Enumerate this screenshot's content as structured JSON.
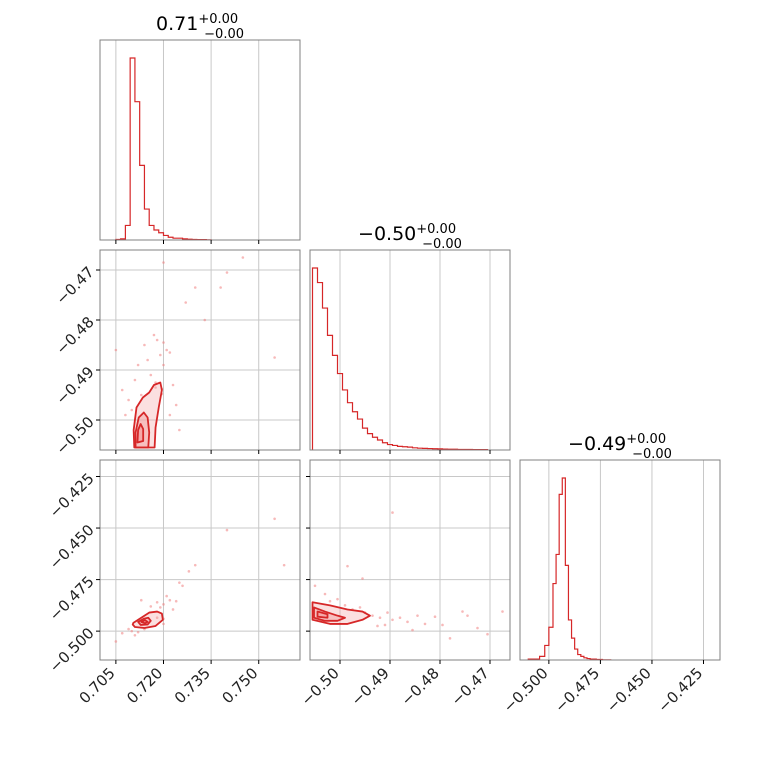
{
  "chart_data": {
    "type": "corner",
    "grid": true,
    "colors": {
      "line": "#d62728",
      "fill": "#f4a6a6",
      "points": "#f08080",
      "frame": "#808080",
      "grid": "#c8c8c8"
    },
    "parameters": [
      {
        "title_value": "0.71",
        "title_plus": "+0.00",
        "title_minus": "−0.00"
      },
      {
        "title_value": "−0.50",
        "title_plus": "+0.00",
        "title_minus": "−0.00"
      },
      {
        "title_value": "−0.49",
        "title_plus": "+0.00",
        "title_minus": "−0.00"
      }
    ],
    "axes": [
      {
        "range": [
          0.7,
          0.763
        ],
        "ticks": [
          0.705,
          0.72,
          0.735,
          0.75
        ],
        "tick_labels": [
          "0.705",
          "0.720",
          "0.735",
          "0.750"
        ]
      },
      {
        "range": [
          -0.506,
          -0.466
        ],
        "ticks": [
          -0.5,
          -0.49,
          -0.48,
          -0.47
        ],
        "tick_labels": [
          "−0.50",
          "−0.49",
          "−0.48",
          "−0.47"
        ]
      },
      {
        "range": [
          -0.514,
          -0.417
        ],
        "ticks": [
          -0.5,
          -0.475,
          -0.45,
          -0.425
        ],
        "tick_labels": [
          "−0.500",
          "−0.475",
          "−0.450",
          "−0.425"
        ]
      }
    ],
    "histograms": [
      {
        "edges": [
          0.705,
          0.7065,
          0.708,
          0.7095,
          0.711,
          0.7125,
          0.714,
          0.7155,
          0.717,
          0.7185,
          0.72,
          0.7215,
          0.723,
          0.7245,
          0.726,
          0.7275,
          0.729,
          0.7305,
          0.732,
          0.7335,
          0.735
        ],
        "counts": [
          0.003,
          0.006,
          0.08,
          1.0,
          0.76,
          0.41,
          0.17,
          0.08,
          0.055,
          0.04,
          0.025,
          0.015,
          0.01,
          0.01,
          0.006,
          0.004,
          0.003,
          0.002,
          0.002,
          0.001
        ]
      },
      {
        "edges": [
          -0.5055,
          -0.5045,
          -0.5035,
          -0.5025,
          -0.5015,
          -0.5005,
          -0.4995,
          -0.4985,
          -0.4975,
          -0.4965,
          -0.4955,
          -0.4945,
          -0.4935,
          -0.4925,
          -0.4915,
          -0.4905,
          -0.4895,
          -0.4885,
          -0.4875,
          -0.4865,
          -0.4855,
          -0.4845,
          -0.4835,
          -0.4825,
          -0.4815,
          -0.4805,
          -0.4795,
          -0.4785,
          -0.4775,
          -0.4765,
          -0.4755,
          -0.4745,
          -0.4735,
          -0.4725,
          -0.4715,
          -0.4705
        ],
        "counts": [
          1.0,
          0.92,
          0.78,
          0.63,
          0.52,
          0.42,
          0.33,
          0.26,
          0.21,
          0.17,
          0.12,
          0.09,
          0.07,
          0.055,
          0.04,
          0.03,
          0.025,
          0.02,
          0.018,
          0.016,
          0.012,
          0.01,
          0.009,
          0.008,
          0.007,
          0.006,
          0.005,
          0.004,
          0.004,
          0.003,
          0.003,
          0.003,
          0.002,
          0.002,
          0.002
        ]
      },
      {
        "edges": [
          -0.51,
          -0.5045,
          -0.502,
          -0.5,
          -0.498,
          -0.4965,
          -0.495,
          -0.4935,
          -0.492,
          -0.4905,
          -0.489,
          -0.4875,
          -0.486,
          -0.4845,
          -0.483,
          -0.4815,
          -0.48,
          -0.477,
          -0.474,
          -0.47
        ],
        "counts": [
          0.005,
          0.02,
          0.08,
          0.18,
          0.42,
          0.58,
          0.91,
          1.0,
          0.52,
          0.22,
          0.12,
          0.06,
          0.03,
          0.02,
          0.012,
          0.008,
          0.005,
          0.003,
          0.001
        ]
      }
    ],
    "pairs": [
      {
        "x_param": 0,
        "y_param": 1,
        "contours": [
          [
            [
              0.7108,
              -0.5055
            ],
            [
              0.7106,
              -0.502
            ],
            [
              0.7115,
              -0.4975
            ],
            [
              0.7135,
              -0.4955
            ],
            [
              0.7155,
              -0.4945
            ],
            [
              0.717,
              -0.493
            ],
            [
              0.719,
              -0.4925
            ],
            [
              0.7195,
              -0.494
            ],
            [
              0.7185,
              -0.4975
            ],
            [
              0.7175,
              -0.5015
            ],
            [
              0.7172,
              -0.5055
            ]
          ],
          [
            [
              0.7112,
              -0.5055
            ],
            [
              0.7112,
              -0.5025
            ],
            [
              0.7122,
              -0.4995
            ],
            [
              0.7138,
              -0.4985
            ],
            [
              0.715,
              -0.4995
            ],
            [
              0.7155,
              -0.5025
            ],
            [
              0.7152,
              -0.5055
            ]
          ],
          [
            [
              0.7118,
              -0.5045
            ],
            [
              0.712,
              -0.502
            ],
            [
              0.7128,
              -0.5008
            ],
            [
              0.7136,
              -0.5018
            ],
            [
              0.7136,
              -0.5042
            ]
          ]
        ],
        "points": [
          [
            0.705,
            -0.486
          ],
          [
            0.707,
            -0.494
          ],
          [
            0.708,
            -0.499
          ],
          [
            0.709,
            -0.496
          ],
          [
            0.71,
            -0.498
          ],
          [
            0.711,
            -0.492
          ],
          [
            0.712,
            -0.489
          ],
          [
            0.713,
            -0.495
          ],
          [
            0.714,
            -0.485
          ],
          [
            0.715,
            -0.488
          ],
          [
            0.716,
            -0.491
          ],
          [
            0.717,
            -0.483
          ],
          [
            0.718,
            -0.484
          ],
          [
            0.719,
            -0.487
          ],
          [
            0.72,
            -0.4845
          ],
          [
            0.72,
            -0.489
          ],
          [
            0.721,
            -0.486
          ],
          [
            0.722,
            -0.499
          ],
          [
            0.722,
            -0.4865
          ],
          [
            0.723,
            -0.493
          ],
          [
            0.724,
            -0.497
          ],
          [
            0.725,
            -0.502
          ],
          [
            0.73,
            -0.4735
          ],
          [
            0.733,
            -0.48
          ],
          [
            0.738,
            -0.4735
          ],
          [
            0.74,
            -0.4705
          ],
          [
            0.745,
            -0.4675
          ],
          [
            0.755,
            -0.4875
          ],
          [
            0.72,
            -0.4685
          ],
          [
            0.727,
            -0.4765
          ],
          [
            0.7175,
            -0.4935
          ],
          [
            0.7175,
            -0.4925
          ],
          [
            0.7195,
            -0.4938
          ],
          [
            0.7195,
            -0.4948
          ]
        ]
      },
      {
        "x_param": 0,
        "y_param": 2,
        "contours": [
          [
            [
              0.7105,
              -0.496
            ],
            [
              0.713,
              -0.4935
            ],
            [
              0.7155,
              -0.491
            ],
            [
              0.718,
              -0.4905
            ],
            [
              0.7195,
              -0.4915
            ],
            [
              0.7198,
              -0.4945
            ],
            [
              0.7175,
              -0.4975
            ],
            [
              0.714,
              -0.4985
            ],
            [
              0.711,
              -0.498
            ],
            [
              0.7103,
              -0.4968
            ]
          ],
          [
            [
              0.712,
              -0.4955
            ],
            [
              0.7138,
              -0.494
            ],
            [
              0.7152,
              -0.4935
            ],
            [
              0.716,
              -0.495
            ],
            [
              0.715,
              -0.4968
            ],
            [
              0.7128,
              -0.497
            ]
          ],
          [
            [
              0.713,
              -0.4955
            ],
            [
              0.7142,
              -0.4947
            ],
            [
              0.715,
              -0.4955
            ],
            [
              0.7142,
              -0.4962
            ]
          ]
        ],
        "points": [
          [
            0.705,
            -0.505
          ],
          [
            0.707,
            -0.501
          ],
          [
            0.709,
            -0.499
          ],
          [
            0.71,
            -0.5
          ],
          [
            0.711,
            -0.502
          ],
          [
            0.712,
            -0.5005
          ],
          [
            0.713,
            -0.485
          ],
          [
            0.714,
            -0.499
          ],
          [
            0.716,
            -0.488
          ],
          [
            0.718,
            -0.486
          ],
          [
            0.719,
            -0.4885
          ],
          [
            0.72,
            -0.487
          ],
          [
            0.721,
            -0.483
          ],
          [
            0.722,
            -0.485
          ],
          [
            0.723,
            -0.4895
          ],
          [
            0.724,
            -0.4855
          ],
          [
            0.725,
            -0.4765
          ],
          [
            0.726,
            -0.478
          ],
          [
            0.728,
            -0.471
          ],
          [
            0.73,
            -0.468
          ],
          [
            0.74,
            -0.451
          ],
          [
            0.755,
            -0.4455
          ],
          [
            0.758,
            -0.468
          ],
          [
            0.72,
            -0.494
          ],
          [
            0.718,
            -0.4935
          ],
          [
            0.72,
            -0.4965
          ]
        ]
      },
      {
        "x_param": 1,
        "y_param": 2,
        "contours": [
          [
            [
              -0.5055,
              -0.486
            ],
            [
              -0.502,
              -0.4875
            ],
            [
              -0.4985,
              -0.4895
            ],
            [
              -0.4955,
              -0.4905
            ],
            [
              -0.494,
              -0.4925
            ],
            [
              -0.4955,
              -0.4945
            ],
            [
              -0.4985,
              -0.4965
            ],
            [
              -0.502,
              -0.4965
            ],
            [
              -0.5055,
              -0.4945
            ]
          ],
          [
            [
              -0.5052,
              -0.4885
            ],
            [
              -0.503,
              -0.4905
            ],
            [
              -0.5005,
              -0.4925
            ],
            [
              -0.499,
              -0.4935
            ],
            [
              -0.5005,
              -0.495
            ],
            [
              -0.503,
              -0.495
            ],
            [
              -0.5052,
              -0.4935
            ]
          ],
          [
            [
              -0.5045,
              -0.4905
            ],
            [
              -0.5025,
              -0.4918
            ],
            [
              -0.5025,
              -0.4935
            ],
            [
              -0.5045,
              -0.493
            ]
          ]
        ],
        "points": [
          [
            -0.505,
            -0.478
          ],
          [
            -0.503,
            -0.482
          ],
          [
            -0.502,
            -0.4855
          ],
          [
            -0.5005,
            -0.4845
          ],
          [
            -0.499,
            -0.4875
          ],
          [
            -0.4975,
            -0.4895
          ],
          [
            -0.496,
            -0.4885
          ],
          [
            -0.495,
            -0.491
          ],
          [
            -0.4935,
            -0.4925
          ],
          [
            -0.492,
            -0.4935
          ],
          [
            -0.4905,
            -0.491
          ],
          [
            -0.4895,
            -0.4945
          ],
          [
            -0.488,
            -0.4935
          ],
          [
            -0.4865,
            -0.4955
          ],
          [
            -0.4845,
            -0.4925
          ],
          [
            -0.483,
            -0.4965
          ],
          [
            -0.481,
            -0.493
          ],
          [
            -0.4795,
            -0.497
          ],
          [
            -0.4755,
            -0.4905
          ],
          [
            -0.4745,
            -0.4925
          ],
          [
            -0.4725,
            -0.4985
          ],
          [
            -0.4705,
            -0.5015
          ],
          [
            -0.4675,
            -0.4905
          ],
          [
            -0.478,
            -0.5035
          ],
          [
            -0.4855,
            -0.4995
          ],
          [
            -0.491,
            -0.497
          ],
          [
            -0.4985,
            -0.4685
          ],
          [
            -0.4955,
            -0.4745
          ],
          [
            -0.4895,
            -0.4425
          ],
          [
            -0.4925,
            -0.4975
          ]
        ]
      }
    ]
  }
}
